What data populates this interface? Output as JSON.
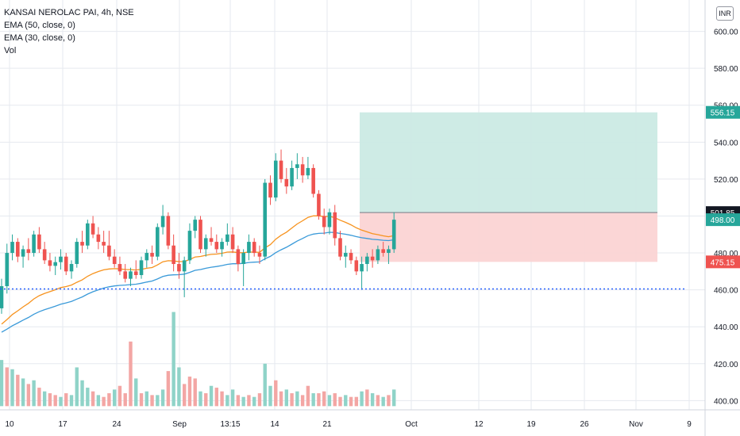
{
  "legend": {
    "symbol": "KANSAI NEROLAC PAI, 4h, NSE",
    "ema1": "EMA (50, close, 0)",
    "ema2": "EMA (30, close, 0)",
    "vol": "Vol"
  },
  "currency_button": "INR",
  "colors": {
    "up": "#26a69a",
    "down": "#ef5350",
    "up_vol": "#8fd3c8",
    "down_vol": "#f3a6a4",
    "ema50": "#3a9ad9",
    "ema30": "#f7931e",
    "grid": "#e6e9ef",
    "target_zone": "#cbeae4",
    "stop_zone": "#fbd4d4",
    "support_line": "#2962ff"
  },
  "chart_data": {
    "type": "candlestick",
    "y_axis": {
      "min": 395,
      "max": 617,
      "ticks": [
        400,
        420,
        440,
        460,
        480,
        500,
        520,
        540,
        560,
        580,
        600
      ],
      "tick_labels": [
        "400.00",
        "420.00",
        "440.00",
        "460.00",
        "480.00",
        "500.00",
        "520.00",
        "540.00",
        "560.00",
        "580.00",
        "600.00"
      ]
    },
    "x_axis": {
      "tick_labels": [
        "10",
        "17",
        "24",
        "Sep",
        "13:15",
        "14",
        "21",
        "Oct",
        "12",
        "19",
        "26",
        "Nov",
        "9"
      ]
    },
    "price_labels": [
      {
        "value": 556.15,
        "text": "556.15",
        "color": "#26a69a"
      },
      {
        "value": 501.85,
        "text": "501.85",
        "color": "#131722"
      },
      {
        "value": 498.0,
        "text": "498.00",
        "color": "#26a69a"
      },
      {
        "value": 475.15,
        "text": "475.15",
        "color": "#ef5350"
      }
    ],
    "position_tool": {
      "entry": 501.85,
      "target": 556.15,
      "stop": 475.15
    },
    "support_level": 460.5,
    "ohlc": [
      [
        450,
        466,
        447,
        462
      ],
      [
        462,
        485,
        458,
        480
      ],
      [
        480,
        490,
        476,
        486
      ],
      [
        486,
        488,
        475,
        478
      ],
      [
        478,
        484,
        472,
        482
      ],
      [
        482,
        488,
        476,
        480
      ],
      [
        480,
        492,
        478,
        490
      ],
      [
        490,
        494,
        480,
        482
      ],
      [
        482,
        486,
        474,
        476
      ],
      [
        476,
        480,
        470,
        473
      ],
      [
        473,
        478,
        468,
        475
      ],
      [
        475,
        482,
        471,
        478
      ],
      [
        478,
        480,
        468,
        470
      ],
      [
        470,
        476,
        466,
        474
      ],
      [
        474,
        488,
        472,
        486
      ],
      [
        486,
        492,
        480,
        484
      ],
      [
        484,
        498,
        482,
        496
      ],
      [
        496,
        500,
        488,
        490
      ],
      [
        490,
        494,
        482,
        486
      ],
      [
        486,
        492,
        480,
        484
      ],
      [
        484,
        492,
        476,
        478
      ],
      [
        478,
        482,
        472,
        474
      ],
      [
        474,
        478,
        468,
        470
      ],
      [
        470,
        474,
        464,
        466
      ],
      [
        466,
        472,
        462,
        470
      ],
      [
        470,
        476,
        466,
        468
      ],
      [
        468,
        478,
        466,
        476
      ],
      [
        476,
        482,
        472,
        480
      ],
      [
        480,
        484,
        474,
        478
      ],
      [
        478,
        496,
        476,
        494
      ],
      [
        494,
        506,
        490,
        500
      ],
      [
        500,
        502,
        482,
        484
      ],
      [
        484,
        490,
        470,
        474
      ],
      [
        474,
        480,
        466,
        470
      ],
      [
        470,
        478,
        456,
        476
      ],
      [
        476,
        496,
        474,
        492
      ],
      [
        492,
        500,
        488,
        498
      ],
      [
        498,
        500,
        480,
        482
      ],
      [
        482,
        490,
        478,
        488
      ],
      [
        488,
        494,
        484,
        486
      ],
      [
        486,
        490,
        480,
        482
      ],
      [
        482,
        488,
        478,
        486
      ],
      [
        486,
        496,
        484,
        490
      ],
      [
        490,
        494,
        480,
        482
      ],
      [
        482,
        484,
        470,
        474
      ],
      [
        474,
        482,
        462,
        480
      ],
      [
        480,
        490,
        476,
        486
      ],
      [
        486,
        488,
        478,
        480
      ],
      [
        480,
        484,
        474,
        478
      ],
      [
        478,
        520,
        476,
        518
      ],
      [
        518,
        522,
        506,
        510
      ],
      [
        510,
        534,
        508,
        530
      ],
      [
        530,
        536,
        518,
        520
      ],
      [
        520,
        526,
        512,
        516
      ],
      [
        516,
        530,
        514,
        526
      ],
      [
        526,
        534,
        520,
        528
      ],
      [
        528,
        532,
        518,
        522
      ],
      [
        522,
        532,
        520,
        526
      ],
      [
        526,
        528,
        510,
        512
      ],
      [
        512,
        514,
        498,
        500
      ],
      [
        500,
        504,
        490,
        494
      ],
      [
        494,
        504,
        490,
        502
      ],
      [
        502,
        506,
        484,
        488
      ],
      [
        488,
        492,
        476,
        478
      ],
      [
        478,
        484,
        472,
        480
      ],
      [
        480,
        482,
        474,
        476
      ],
      [
        476,
        478,
        468,
        470
      ],
      [
        470,
        478,
        460,
        474
      ],
      [
        474,
        480,
        470,
        478
      ],
      [
        478,
        482,
        472,
        476
      ],
      [
        476,
        484,
        474,
        482
      ],
      [
        482,
        486,
        478,
        480
      ],
      [
        480,
        484,
        474,
        482
      ],
      [
        482,
        502,
        480,
        498
      ]
    ],
    "volume": [
      [
        422,
        1
      ],
      [
        418,
        0
      ],
      [
        417,
        1
      ],
      [
        414,
        0
      ],
      [
        412,
        1
      ],
      [
        409,
        0
      ],
      [
        411,
        1
      ],
      [
        407,
        0
      ],
      [
        405,
        1
      ],
      [
        404,
        0
      ],
      [
        403,
        0
      ],
      [
        402,
        1
      ],
      [
        404,
        0
      ],
      [
        403,
        1
      ],
      [
        418,
        1
      ],
      [
        411,
        1
      ],
      [
        407,
        1
      ],
      [
        405,
        0
      ],
      [
        403,
        1
      ],
      [
        402,
        0
      ],
      [
        404,
        0
      ],
      [
        406,
        1
      ],
      [
        408,
        0
      ],
      [
        404,
        0
      ],
      [
        432,
        0
      ],
      [
        412,
        1
      ],
      [
        404,
        0
      ],
      [
        405,
        1
      ],
      [
        403,
        0
      ],
      [
        403,
        1
      ],
      [
        406,
        1
      ],
      [
        416,
        0
      ],
      [
        448,
        1
      ],
      [
        418,
        1
      ],
      [
        409,
        0
      ],
      [
        413,
        0
      ],
      [
        412,
        0
      ],
      [
        405,
        1
      ],
      [
        404,
        0
      ],
      [
        408,
        1
      ],
      [
        407,
        0
      ],
      [
        405,
        0
      ],
      [
        403,
        1
      ],
      [
        406,
        1
      ],
      [
        403,
        0
      ],
      [
        402,
        1
      ],
      [
        403,
        0
      ],
      [
        402,
        1
      ],
      [
        404,
        0
      ],
      [
        420,
        1
      ],
      [
        408,
        1
      ],
      [
        411,
        0
      ],
      [
        405,
        0
      ],
      [
        406,
        1
      ],
      [
        404,
        0
      ],
      [
        405,
        1
      ],
      [
        403,
        0
      ],
      [
        408,
        0
      ],
      [
        404,
        1
      ],
      [
        404,
        0
      ],
      [
        405,
        0
      ],
      [
        403,
        1
      ],
      [
        404,
        0
      ],
      [
        402,
        0
      ],
      [
        403,
        1
      ],
      [
        402,
        0
      ],
      [
        402,
        0
      ],
      [
        405,
        1
      ],
      [
        406,
        0
      ],
      [
        404,
        1
      ],
      [
        403,
        0
      ],
      [
        402,
        1
      ],
      [
        403,
        0
      ],
      [
        406,
        1
      ]
    ]
  }
}
